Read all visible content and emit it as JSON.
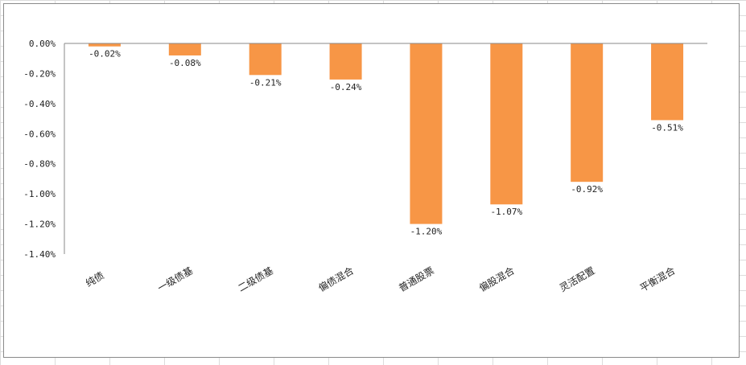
{
  "chart_data": {
    "type": "bar",
    "categories": [
      "纯债",
      "一级债基",
      "二级债基",
      "偏债混合",
      "普通股票",
      "偏股混合",
      "灵活配置",
      "平衡混合"
    ],
    "series": [
      {
        "values": [
          -0.02,
          -0.08,
          -0.21,
          -0.24,
          -1.2,
          -1.07,
          -0.92,
          -0.51
        ]
      }
    ],
    "data_labels": [
      "-0.02%",
      "-0.08%",
      "-0.21%",
      "-0.24%",
      "-1.20%",
      "-1.07%",
      "-0.92%",
      "-0.51%"
    ],
    "y_ticks": [
      0,
      -0.2,
      -0.4,
      -0.6,
      -0.8,
      -1.0,
      -1.2,
      -1.4
    ],
    "y_tick_labels": [
      "0.00%",
      "-0.20%",
      "-0.40%",
      "-0.60%",
      "-0.80%",
      "-1.00%",
      "-1.20%",
      "-1.40%"
    ],
    "ylim": [
      -1.4,
      0
    ],
    "title": "",
    "xlabel": "",
    "ylabel": "",
    "grid": false,
    "legend": "none",
    "bar_color": "#f79646"
  }
}
